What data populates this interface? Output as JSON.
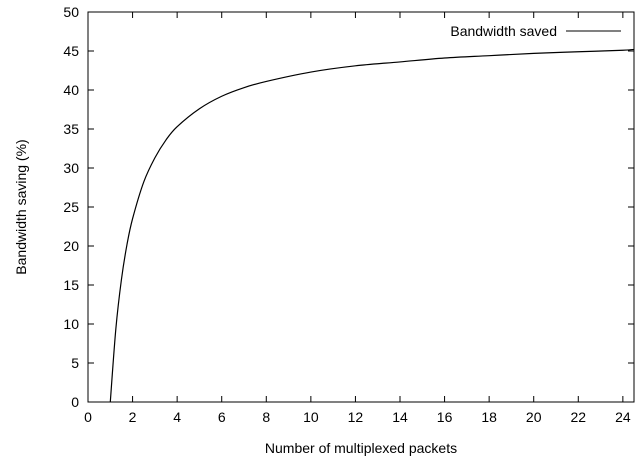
{
  "chart_data": {
    "type": "line",
    "title": "",
    "xlabel": "Number of multiplexed packets",
    "ylabel": "Bandwidth saving (%)",
    "xlim": [
      0,
      24.5
    ],
    "ylim": [
      0,
      50
    ],
    "x_ticks": [
      "0",
      "2",
      "4",
      "6",
      "8",
      "10",
      "12",
      "14",
      "16",
      "18",
      "20",
      "22",
      "24"
    ],
    "y_ticks": [
      "0",
      "5",
      "10",
      "15",
      "20",
      "25",
      "30",
      "35",
      "40",
      "45",
      "50"
    ],
    "grid": false,
    "legend_position": "top-right",
    "series": [
      {
        "name": "Bandwidth saved",
        "color": "#000000",
        "x": [
          1,
          1.25,
          1.5,
          1.75,
          2,
          2.5,
          3,
          3.5,
          4,
          5,
          6,
          7,
          8,
          10,
          12,
          14,
          16,
          18,
          20,
          22,
          24,
          24.5
        ],
        "y": [
          0,
          9.4,
          15.7,
          20.2,
          23.5,
          28.2,
          31.3,
          33.6,
          35.3,
          37.6,
          39.2,
          40.3,
          41.1,
          42.3,
          43.1,
          43.6,
          44.1,
          44.4,
          44.7,
          44.9,
          45.1,
          45.2
        ]
      }
    ]
  }
}
